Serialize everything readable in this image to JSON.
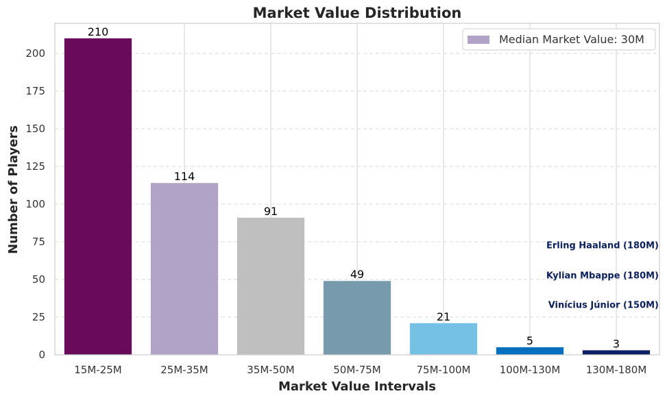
{
  "chart_data": {
    "type": "bar",
    "title": "Market Value Distribution",
    "xlabel": "Market Value Intervals",
    "ylabel": "Number of Players",
    "categories": [
      "15M-25M",
      "25M-35M",
      "35M-50M",
      "50M-75M",
      "75M-100M",
      "100M-130M",
      "130M-180M"
    ],
    "values": [
      210,
      114,
      91,
      49,
      21,
      5,
      3
    ],
    "colors": [
      "#6a0a5a",
      "#b1a3c8",
      "#bfbfbf",
      "#779aac",
      "#74c1e5",
      "#0570c0",
      "#0c2061"
    ],
    "ylim": [
      0,
      220
    ],
    "yticks": [
      0,
      25,
      50,
      75,
      100,
      125,
      150,
      175,
      200
    ],
    "grid": true,
    "legend": {
      "placement": "top-right",
      "label": "Median Market Value: 30M",
      "color": "#b1a3c8"
    },
    "annotations": [
      {
        "text": "Erling Haaland (180M)",
        "y": 73
      },
      {
        "text": "Kylian Mbappe (180M)",
        "y": 53
      },
      {
        "text": "Vinícius Júnior (150M)",
        "y": 33.5
      }
    ],
    "annotation_color": "#0b2060"
  }
}
